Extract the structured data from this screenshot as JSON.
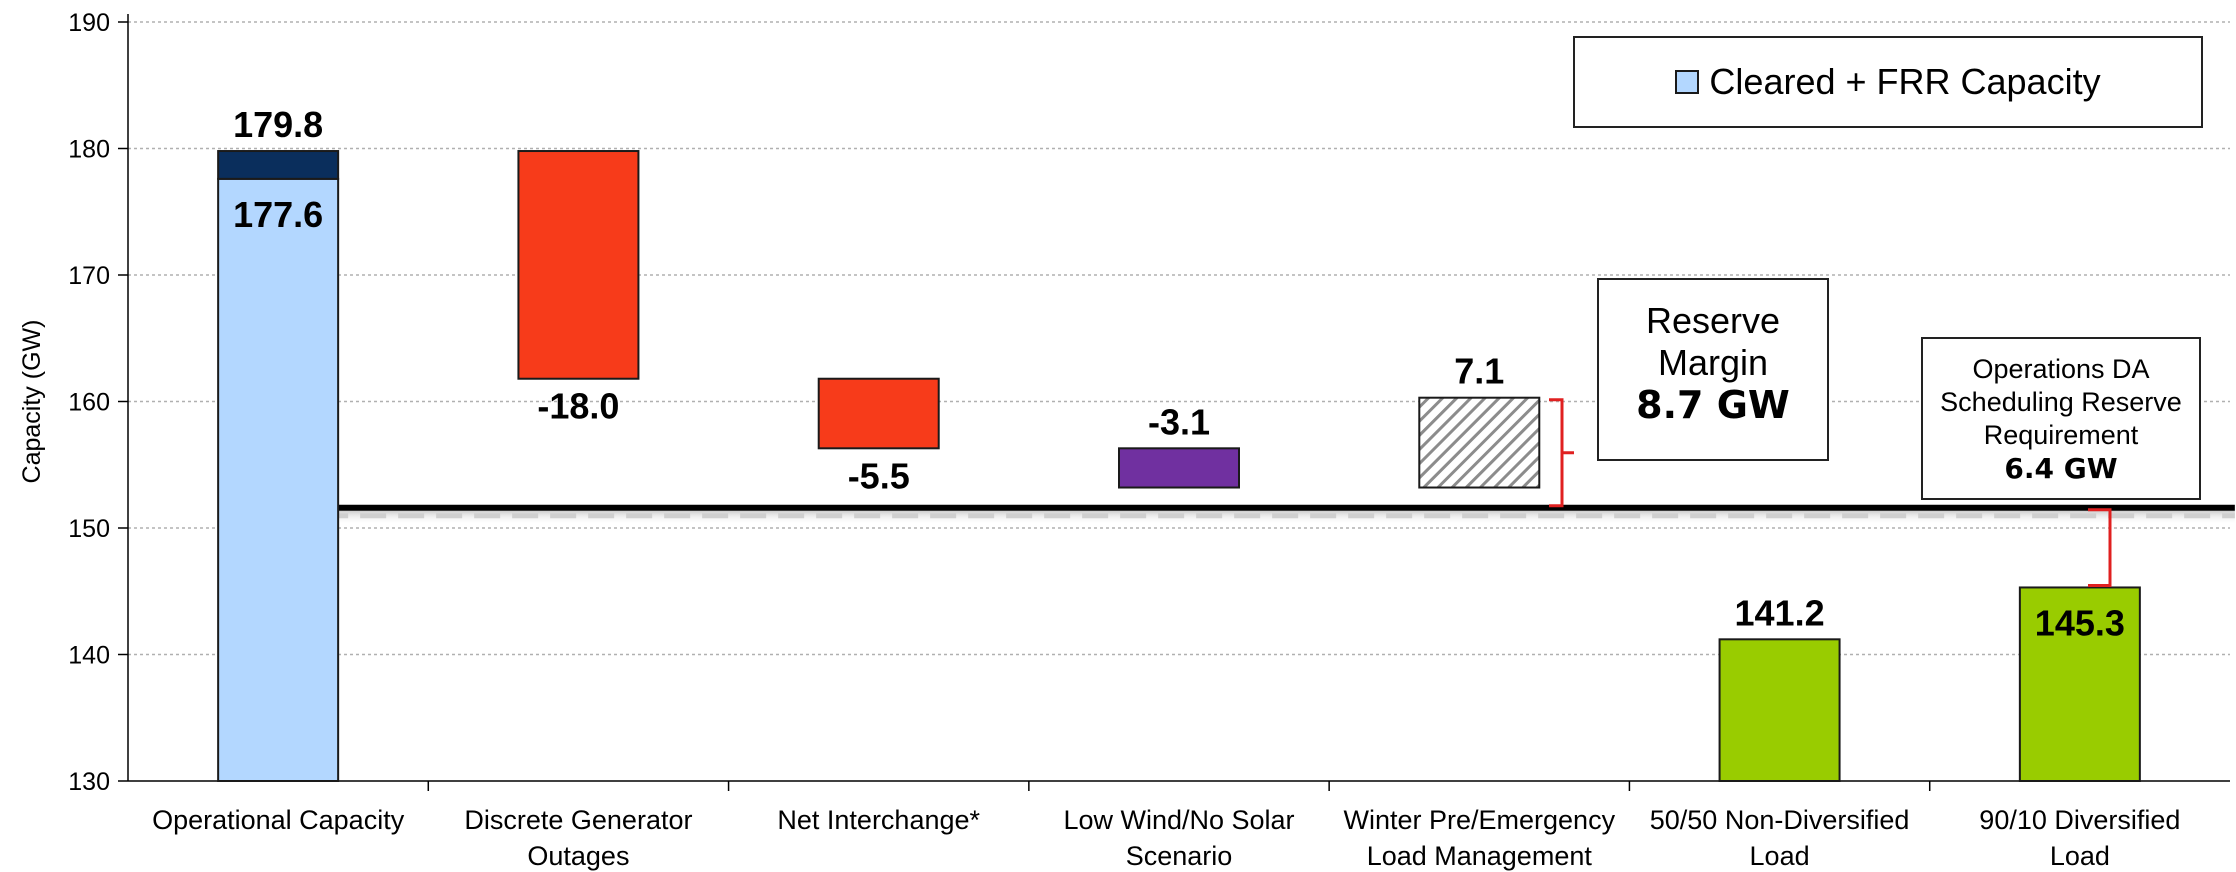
{
  "chart_data": {
    "type": "bar",
    "subtype": "waterfall",
    "ylabel": "Capacity (GW)",
    "ylim": [
      130,
      190
    ],
    "yticks": [
      130,
      140,
      150,
      160,
      170,
      180,
      190
    ],
    "grid": true,
    "categories": [
      [
        "Operational Capacity"
      ],
      [
        "Discrete Generator",
        "Outages"
      ],
      [
        "Net Interchange*"
      ],
      [
        "Low Wind/No Solar",
        "Scenario"
      ],
      [
        "Winter Pre/Emergency",
        "Load Management"
      ],
      [
        "50/50 Non-Diversified",
        "Load"
      ],
      [
        "90/10 Diversified",
        "Load"
      ]
    ],
    "bars": [
      {
        "bottom": 130,
        "top": 177.6,
        "color": "#b3d7ff",
        "label": "177.6",
        "fill": "solid"
      },
      {
        "bottom": 177.6,
        "top": 179.8,
        "color": "#0a2e5c",
        "label": "179.8",
        "fill": "solid"
      },
      {
        "bottom": 161.8,
        "top": 179.8,
        "color": "#f73b1a",
        "label": "-18.0",
        "fill": "solid"
      },
      {
        "bottom": 156.3,
        "top": 161.8,
        "color": "#f73b1a",
        "label": "-5.5",
        "fill": "solid"
      },
      {
        "bottom": 153.2,
        "top": 156.3,
        "color": "#7030a0",
        "label": "-3.1",
        "fill": "solid"
      },
      {
        "bottom": 153.2,
        "top": 160.3,
        "color": "#ffffff",
        "label": "7.1",
        "fill": "hatch"
      },
      {
        "bottom": 130,
        "top": 141.2,
        "color": "#99cc00",
        "label": "141.2",
        "fill": "solid"
      },
      {
        "bottom": 130,
        "top": 145.3,
        "color": "#99cc00",
        "label": "145.3",
        "fill": "solid"
      }
    ],
    "reference_line": 151.6,
    "legend": {
      "label": "Cleared + FRR Capacity",
      "color": "#b3d7ff",
      "placement": "top-right"
    },
    "annotations": {
      "reserve_margin": [
        "Reserve",
        "Margin",
        "8.7 GW"
      ],
      "ops_reserve": [
        "Operations DA",
        "Scheduling Reserve",
        "Requirement",
        "6.4 GW"
      ]
    }
  }
}
